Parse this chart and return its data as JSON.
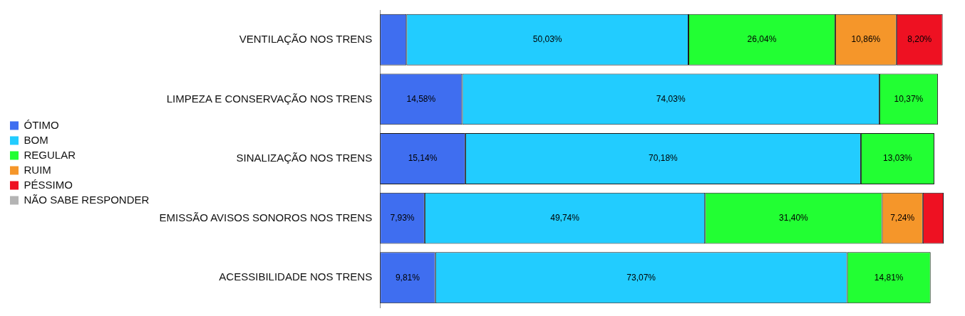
{
  "chart_data": {
    "type": "bar",
    "orientation": "horizontal",
    "stacked": true,
    "legend": "left",
    "tick_labels": "y",
    "categories": [
      "VENTILAÇÃO NOS TRENS",
      "LIMPEZA E CONSERVAÇÃO NOS TRENS",
      "SINALIZAÇÃO NOS TRENS",
      "EMISSÃO AVISOS SONOROS NOS TRENS",
      "ACESSIBILIDADE NOS TRENS"
    ],
    "xlim": [
      0,
      100
    ],
    "series": [
      {
        "name": "ÓTIMO",
        "color": "#3f6ef0",
        "values": [
          4.7,
          14.58,
          15.14,
          7.93,
          9.81
        ],
        "value_labels": [
          null,
          "14,58%",
          "15,14%",
          "7,93%",
          "9,81%"
        ]
      },
      {
        "name": "BOM",
        "color": "#22ccff",
        "values": [
          50.03,
          74.03,
          70.18,
          49.74,
          73.07
        ],
        "value_labels": [
          "50,03%",
          "74,03%",
          "70,18%",
          "49,74%",
          "73,07%"
        ]
      },
      {
        "name": "REGULAR",
        "color": "#22ff33",
        "values": [
          26.04,
          10.37,
          13.03,
          31.4,
          14.81
        ],
        "value_labels": [
          "26,04%",
          "10,37%",
          "13,03%",
          "31,40%",
          "14,81%"
        ]
      },
      {
        "name": "RUIM",
        "color": "#f5962a",
        "values": [
          10.86,
          null,
          null,
          7.24,
          null
        ],
        "value_labels": [
          "10,86%",
          null,
          null,
          "7,24%",
          null
        ]
      },
      {
        "name": "PÉSSIMO",
        "color": "#ee1122",
        "values": [
          8.2,
          null,
          null,
          3.69,
          null
        ],
        "value_labels": [
          "8,20%",
          null,
          null,
          null,
          null
        ]
      },
      {
        "name": "NÃO SABE RESPONDER",
        "color": "#b4b4b4",
        "values": [
          null,
          null,
          null,
          null,
          null
        ]
      }
    ]
  }
}
